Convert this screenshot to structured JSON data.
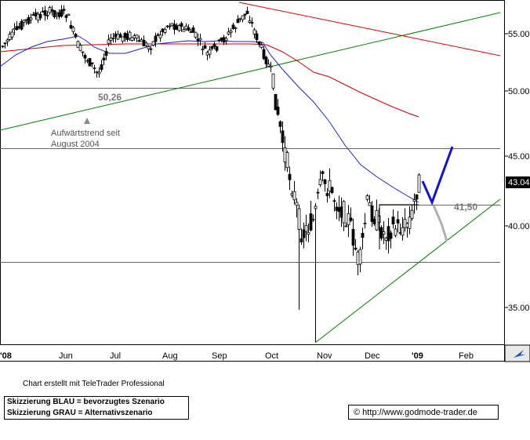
{
  "chart_data": {
    "type": "candlestick",
    "x_ticks": [
      "'08",
      "Jun",
      "Jul",
      "Aug",
      "Sep",
      "Oct",
      "Nov",
      "Dec",
      "'09",
      "Feb"
    ],
    "y_ticks": [
      "55.00",
      "50.00",
      "45.00",
      "40.00",
      "35.00"
    ],
    "ylim": [
      32.5,
      57
    ],
    "grid": false,
    "last_price": "43.04",
    "horizontal_levels": [
      50.26,
      45.6,
      41.5,
      37.8
    ],
    "level_labels": [
      {
        "text": "50,26",
        "value": 50.26
      },
      {
        "text": "41,50",
        "value": 41.5
      }
    ],
    "annotations": [
      "Aufwärtstrend seit",
      "August 2004"
    ],
    "series_colors": {
      "candles": "#000000",
      "ma_short": "#2020d0",
      "ma_long": "#d02020",
      "trendlines": "#008000",
      "scenario_blue": "#1010e0",
      "scenario_grey": "#b0b0b0"
    }
  },
  "footer": {
    "credit": "Chart erstellt mit TeleTrader Professional",
    "legend_blue": "Skizzierung BLAU = bevorzugtes Szenario",
    "legend_grey": "Skizzierung GRAU = Alternativszenario",
    "url": "© http://www.godmode-trader.de"
  }
}
